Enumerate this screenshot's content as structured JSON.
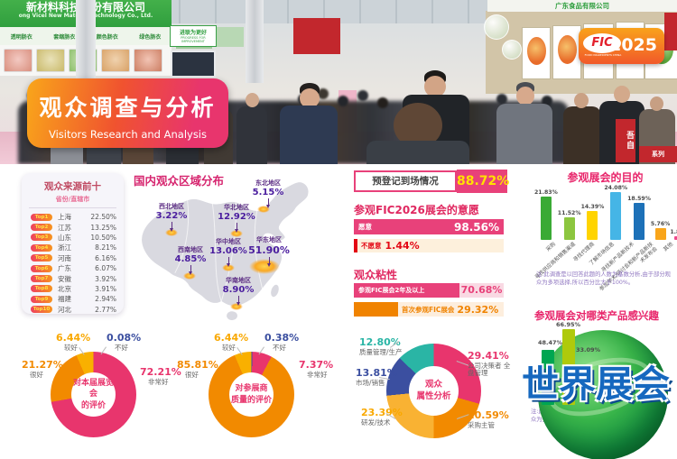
{
  "fic_logo": {
    "name": "FIC",
    "year": "2025",
    "sub": "FOOD INGREDIENTS CHINA"
  },
  "banner": {
    "title": "观众调查与分析",
    "subtitle": "Visitors Research and Analysis"
  },
  "photo": {
    "left_sign": "新材料科技股份有限公司",
    "left_sign_en": "ong Vicel New Material Technology Co., Ltd.",
    "right_sign": "广东食品有限公司",
    "progress_sign": "进联为更好",
    "progress_sign_en": "PROGRESS FOR IMPROVEMENT",
    "red_strip_text": "吾自",
    "red_series_text": "系列",
    "product_labels": [
      "透明肠衣",
      "套缩肠衣",
      "颜色肠衣",
      "绿色肠衣",
      "印刷肠衣",
      "大口径纤维素肠衣"
    ]
  },
  "prereg": {
    "label": "预登记到场情况",
    "value": "88.72"
  },
  "survey_note": "注:此调查是以回答此题的人数为基数分析,由于部分观众为多项选择,所以百分比大于100%。",
  "watermark": "世界展会",
  "chart_data": [
    {
      "type": "table",
      "title": "观众来源前十",
      "subtitle": "省份/直辖市",
      "ranks": [
        "Top1",
        "Top2",
        "Top3",
        "Top4",
        "Top5",
        "Top6",
        "Top7",
        "Top8",
        "Top9",
        "Top10"
      ],
      "categories": [
        "上海",
        "江苏",
        "山东",
        "浙江",
        "河南",
        "广东",
        "安徽",
        "北京",
        "福建",
        "河北"
      ],
      "values": [
        "22.50",
        "13.25",
        "10.50",
        "8.21",
        "6.16",
        "6.07",
        "3.92",
        "3.91",
        "2.94",
        "2.77"
      ]
    },
    {
      "type": "table",
      "layout": "china-map",
      "title": "国内观众区域分布",
      "categories": [
        "东北地区",
        "西北地区",
        "华北地区",
        "华中地区",
        "华东地区",
        "西南地区",
        "华南地区"
      ],
      "values": [
        "5.15",
        "3.22",
        "12.92",
        "13.06",
        "51.90",
        "4.85",
        "8.90"
      ]
    },
    {
      "type": "bar",
      "title": "参观FIC2026展会的意愿",
      "categories": [
        "愿意",
        "不愿意"
      ],
      "values": [
        "98.56",
        "1.44"
      ]
    },
    {
      "type": "bar",
      "title": "观众粘性",
      "categories": [
        "参观FIC展会2年及以上",
        "首次参观FIC展会"
      ],
      "values": [
        "70.68",
        "29.32"
      ]
    },
    {
      "type": "bar",
      "title": "参观展会的目的",
      "categories": [
        "采购",
        "寻找供应商和销售渠道",
        "寻找代理商",
        "了解市场信息",
        "寻找新产品新技术",
        "参加学术/研讨会和新产品新技术发布会",
        "其他"
      ],
      "values": [
        "21.83",
        "11.52",
        "14.39",
        "24.08",
        "18.59",
        "5.76",
        "1.83"
      ],
      "colors": [
        "#3aaa35",
        "#8cc63f",
        "#ffd400",
        "#45b5e6",
        "#1d71b8",
        "#f9a51a",
        "#f0488c"
      ]
    },
    {
      "type": "bar",
      "title": "参观展会对哪类产品感兴趣",
      "values": [
        "48.47",
        "66.95",
        "33.09"
      ],
      "colors": [
        "#00a651",
        "#afca0b",
        "#ffd400"
      ]
    },
    {
      "type": "pie",
      "title": "对本届展览会的评价",
      "center": [
        "对本届展览会",
        "的评价"
      ],
      "slices": [
        {
          "label": "非常好",
          "value": "72.21",
          "color": "#e8356d"
        },
        {
          "label": "很好",
          "value": "21.27",
          "color": "#f28a00"
        },
        {
          "label": "较好",
          "value": "6.44",
          "color": "#f9b000"
        },
        {
          "label": "不好",
          "value": "0.08",
          "color": "#3b4fa0"
        }
      ]
    },
    {
      "type": "pie",
      "title": "对参展商质量的评价",
      "center": [
        "对参展商",
        "质量的评价"
      ],
      "slices": [
        {
          "label": "不好",
          "value": "0.38",
          "color": "#3b4fa0"
        },
        {
          "label": "非常好",
          "value": "7.37",
          "color": "#e8356d"
        },
        {
          "label": "很好",
          "value": "85.81",
          "color": "#f28a00"
        },
        {
          "label": "较好",
          "value": "6.44",
          "color": "#f9b000"
        }
      ]
    },
    {
      "type": "pie",
      "title": "观众属性分析",
      "center": [
        "观众",
        "属性分析"
      ],
      "slices": [
        {
          "label": "公司决策者 全盘管理",
          "value": "29.41",
          "color": "#e8356d"
        },
        {
          "label": "采购主管",
          "value": "20.59",
          "color": "#f28a00"
        },
        {
          "label": "研发/技术",
          "value": "23.39",
          "color": "#f9b233"
        },
        {
          "label": "市场/销售",
          "value": "13.81",
          "color": "#3b4fa0"
        },
        {
          "label": "质量管理/生产",
          "value": "12.80",
          "color": "#2ab5a5"
        }
      ]
    }
  ]
}
